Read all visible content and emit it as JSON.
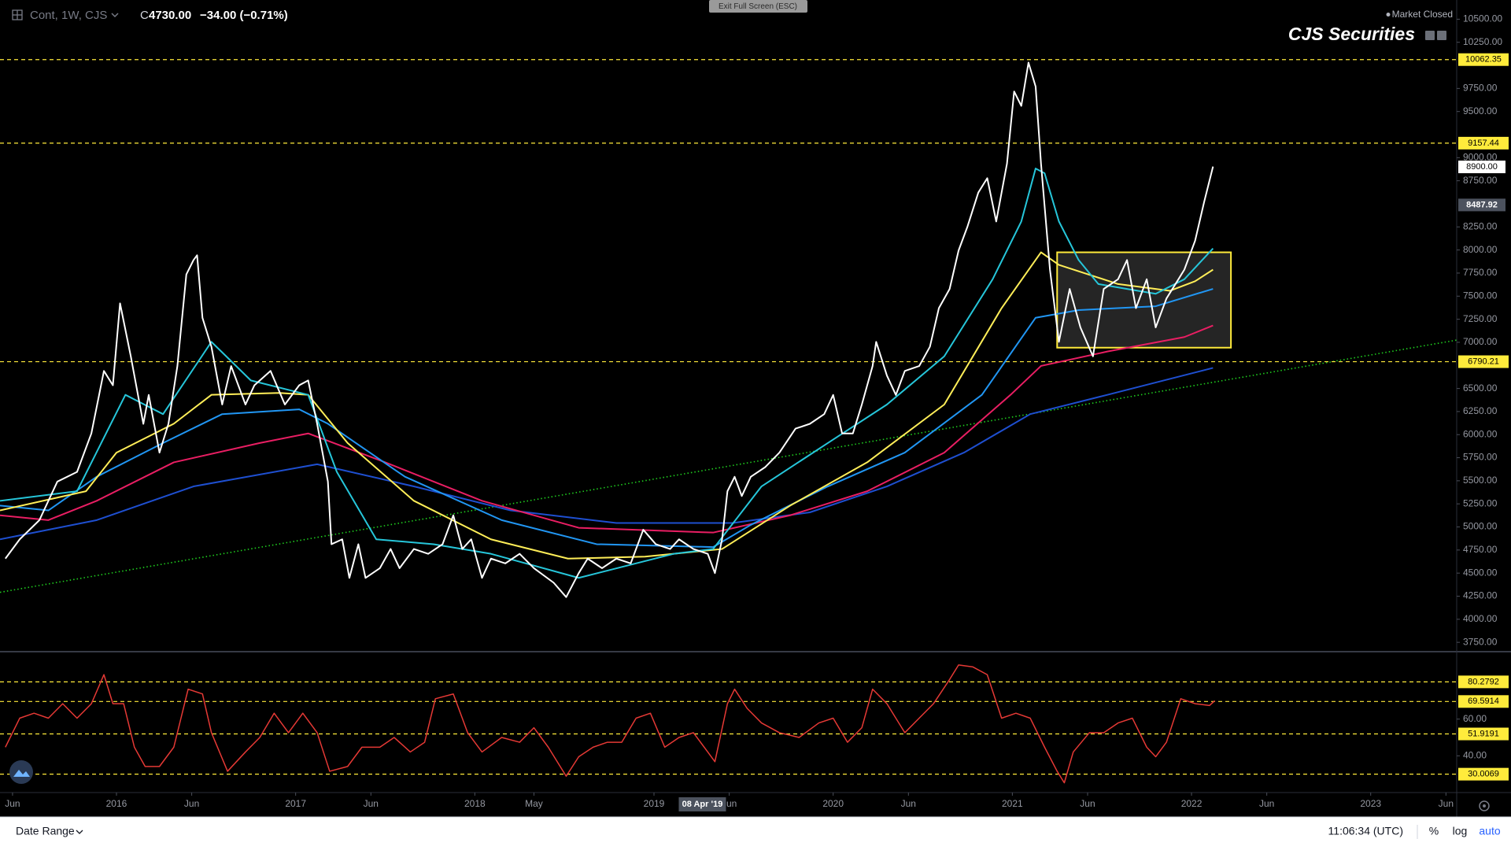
{
  "header": {
    "symbol": "Cont, 1W, CJS",
    "close_prefix": "C",
    "close": "4730.00",
    "change": "−34.00 (−0.71%)",
    "fullscreen": "Exit Full Screen (ESC)",
    "status": "Market Closed",
    "brand": "CJS Securities"
  },
  "toolbar": {
    "date_range": "Date Range",
    "time": "11:06:34 (UTC)",
    "percent": "%",
    "log": "log",
    "auto": "auto"
  },
  "chart_data": [
    {
      "type": "line",
      "log_scale": false,
      "grid": false,
      "xlim": [
        2015.35,
        2023.48
      ],
      "ylim": [
        3666,
        10708
      ],
      "yticks": [
        {
          "value": 10500,
          "label": "10500.00"
        },
        {
          "value": 10250,
          "label": "10250.00"
        },
        {
          "value": 9750,
          "label": "9750.00"
        },
        {
          "value": 9500,
          "label": "9500.00"
        },
        {
          "value": 9000,
          "label": "9000.00"
        },
        {
          "value": 8750,
          "label": "8750.00"
        },
        {
          "value": 8250,
          "label": "8250.00"
        },
        {
          "value": 8000,
          "label": "8000.00"
        },
        {
          "value": 7750,
          "label": "7750.00"
        },
        {
          "value": 7500,
          "label": "7500.00"
        },
        {
          "value": 7250,
          "label": "7250.00"
        },
        {
          "value": 7000,
          "label": "7000.00"
        },
        {
          "value": 6500,
          "label": "6500.00"
        },
        {
          "value": 6250,
          "label": "6250.00"
        },
        {
          "value": 6000,
          "label": "6000.00"
        },
        {
          "value": 5750,
          "label": "5750.00"
        },
        {
          "value": 5500,
          "label": "5500.00"
        },
        {
          "value": 5250,
          "label": "5250.00"
        },
        {
          "value": 5000,
          "label": "5000.00"
        },
        {
          "value": 4750,
          "label": "4750.00"
        },
        {
          "value": 4500,
          "label": "4500.00"
        },
        {
          "value": 4250,
          "label": "4250.00"
        },
        {
          "value": 4000,
          "label": "4000.00"
        },
        {
          "value": 3750,
          "label": "3750.00"
        }
      ],
      "trendline": {
        "color": "#1fcf1f",
        "x": [
          2015.35,
          2023.48
        ],
        "values": [
          4292,
          7024
        ]
      },
      "box": {
        "color": "#ffeb3b",
        "fill": "#2b2b2b",
        "x": [
          2021.25,
          2022.22
        ],
        "values": [
          6942,
          7975
        ]
      },
      "levels": {
        "color": "#ffeb3b",
        "values": [
          10062.35,
          9157.44,
          6790.21
        ]
      },
      "last_price": {
        "value": 8900,
        "label": "8900.00"
      },
      "crosshair_price": 8487.92,
      "series": [
        {
          "color": "#1e4fd0",
          "x": [
            2015.35,
            2015.89,
            2016.43,
            2017.12,
            2017.66,
            2018.2,
            2018.79,
            2019.44,
            2019.87,
            2020.3,
            2020.73,
            2021.1,
            2021.53,
            2022.12
          ],
          "values": [
            4866,
            5074,
            5439,
            5679,
            5439,
            5179,
            5043,
            5043,
            5158,
            5439,
            5805,
            6222,
            6431,
            6723
          ]
        },
        {
          "color": "#e91e63",
          "x": [
            2015.35,
            2015.62,
            2015.89,
            2016.32,
            2016.8,
            2017.07,
            2017.5,
            2018.04,
            2018.58,
            2019.33,
            2019.76,
            2020.19,
            2020.62,
            2020.99,
            2021.16,
            2021.53,
            2021.96,
            2022.12
          ],
          "values": [
            5126,
            5074,
            5283,
            5700,
            5909,
            6013,
            5700,
            5283,
            4991,
            4939,
            5126,
            5387,
            5805,
            6431,
            6744,
            6900,
            7057,
            7182
          ]
        },
        {
          "color": "#2196f3",
          "x": [
            2015.35,
            2015.62,
            2015.89,
            2016.26,
            2016.59,
            2017.02,
            2017.18,
            2017.61,
            2018.15,
            2018.68,
            2019.33,
            2019.54,
            2019.97,
            2020.4,
            2020.83,
            2021.13,
            2021.37,
            2021.8,
            2022.12
          ],
          "values": [
            5231,
            5179,
            5544,
            5909,
            6222,
            6274,
            6118,
            5544,
            5074,
            4813,
            4782,
            5022,
            5439,
            5805,
            6431,
            7266,
            7349,
            7391,
            7579
          ]
        },
        {
          "color": "#ffee58",
          "x": [
            2015.35,
            2015.83,
            2016.0,
            2016.32,
            2016.53,
            2016.91,
            2017.07,
            2017.29,
            2017.66,
            2018.09,
            2018.52,
            2018.95,
            2019.38,
            2019.76,
            2020.19,
            2020.62,
            2020.94,
            2021.16,
            2021.26,
            2021.59,
            2021.88,
            2022.02,
            2022.12
          ],
          "values": [
            5179,
            5387,
            5805,
            6118,
            6431,
            6452,
            6431,
            5909,
            5283,
            4866,
            4657,
            4678,
            4761,
            5231,
            5700,
            6326,
            7370,
            7975,
            7839,
            7631,
            7558,
            7662,
            7787
          ]
        },
        {
          "color": "#26c6da",
          "x": [
            2015.35,
            2015.78,
            2016.05,
            2016.26,
            2016.53,
            2016.75,
            2017.07,
            2017.23,
            2017.45,
            2017.77,
            2018.09,
            2018.58,
            2019.11,
            2019.33,
            2019.6,
            2019.97,
            2020.3,
            2020.62,
            2020.89,
            2021.05,
            2021.13,
            2021.18,
            2021.26,
            2021.37,
            2021.48,
            2021.64,
            2021.8,
            2021.96,
            2022.12
          ],
          "values": [
            5283,
            5387,
            6431,
            6222,
            7005,
            6587,
            6431,
            5596,
            4866,
            4813,
            4709,
            4448,
            4709,
            4761,
            5439,
            5909,
            6326,
            6848,
            7683,
            8309,
            8883,
            8831,
            8309,
            7891,
            7631,
            7578,
            7526,
            7683,
            8017
          ]
        },
        {
          "color": "#ffffff",
          "x": [
            2015.38,
            2015.46,
            2015.57,
            2015.67,
            2015.78,
            2015.86,
            2015.93,
            2015.98,
            2016.02,
            2016.08,
            2016.15,
            2016.18,
            2016.24,
            2016.29,
            2016.34,
            2016.39,
            2016.43,
            2016.45,
            2016.48,
            2016.53,
            2016.59,
            2016.64,
            2016.72,
            2016.77,
            2016.86,
            2016.94,
            2017.02,
            2017.07,
            2017.12,
            2017.18,
            2017.2,
            2017.26,
            2017.3,
            2017.35,
            2017.39,
            2017.47,
            2017.53,
            2017.58,
            2017.66,
            2017.74,
            2017.82,
            2017.88,
            2017.93,
            2017.98,
            2018.04,
            2018.09,
            2018.17,
            2018.25,
            2018.33,
            2018.44,
            2018.51,
            2018.58,
            2018.63,
            2018.71,
            2018.79,
            2018.87,
            2018.94,
            2019.01,
            2019.09,
            2019.14,
            2019.22,
            2019.3,
            2019.34,
            2019.38,
            2019.41,
            2019.45,
            2019.49,
            2019.54,
            2019.62,
            2019.7,
            2019.79,
            2019.87,
            2019.95,
            2020.0,
            2020.05,
            2020.11,
            2020.16,
            2020.22,
            2020.24,
            2020.3,
            2020.35,
            2020.4,
            2020.48,
            2020.54,
            2020.59,
            2020.65,
            2020.7,
            2020.75,
            2020.81,
            2020.86,
            2020.91,
            2020.97,
            2021.01,
            2021.05,
            2021.09,
            2021.13,
            2021.16,
            2021.21,
            2021.26,
            2021.32,
            2021.38,
            2021.45,
            2021.51,
            2021.59,
            2021.64,
            2021.69,
            2021.75,
            2021.8,
            2021.86,
            2021.91,
            2021.96,
            2022.02,
            2022.07,
            2022.12
          ],
          "values": [
            4657,
            4866,
            5074,
            5491,
            5596,
            6013,
            6690,
            6535,
            7422,
            6848,
            6117,
            6430,
            5805,
            6117,
            6743,
            7735,
            7891,
            7943,
            7265,
            6952,
            6326,
            6743,
            6326,
            6535,
            6690,
            6326,
            6535,
            6587,
            6117,
            5491,
            4813,
            4866,
            4448,
            4813,
            4448,
            4553,
            4761,
            4553,
            4761,
            4709,
            4813,
            5126,
            4761,
            4866,
            4448,
            4657,
            4605,
            4709,
            4553,
            4396,
            4240,
            4500,
            4657,
            4553,
            4657,
            4605,
            4970,
            4813,
            4761,
            4866,
            4761,
            4709,
            4500,
            4866,
            5387,
            5543,
            5335,
            5543,
            5647,
            5805,
            6065,
            6117,
            6222,
            6430,
            6013,
            6013,
            6326,
            6743,
            7005,
            6640,
            6430,
            6690,
            6743,
            6952,
            7370,
            7578,
            7995,
            8256,
            8622,
            8778,
            8309,
            8935,
            9717,
            9561,
            10030,
            9770,
            8935,
            7787,
            7005,
            7578,
            7161,
            6848,
            7578,
            7683,
            7891,
            7370,
            7683,
            7161,
            7474,
            7630,
            7787,
            8100,
            8517,
            8904
          ]
        }
      ]
    },
    {
      "type": "line",
      "grid": false,
      "xlim": [
        2015.35,
        2023.48
      ],
      "ylim": [
        20,
        96.3
      ],
      "yticks": [
        {
          "value": 60,
          "label": "60.00"
        },
        {
          "value": 40,
          "label": "40.00"
        }
      ],
      "xticks": [
        {
          "value": 2015.42,
          "label": "Jun"
        },
        2016,
        {
          "value": 2016.42,
          "label": "Jun"
        },
        2017,
        {
          "value": 2017.42,
          "label": "Jun"
        },
        2018,
        {
          "value": 2018.33,
          "label": "May"
        },
        2019,
        {
          "value": 2019.42,
          "label": "Jun"
        },
        2020,
        {
          "value": 2020.42,
          "label": "Jun"
        },
        2021,
        {
          "value": 2021.42,
          "label": "Jun"
        },
        2022,
        {
          "value": 2022.42,
          "label": "Jun"
        },
        2023,
        {
          "value": 2023.42,
          "label": "Jun"
        }
      ],
      "levels": {
        "color": "#ffeb3b",
        "values": [
          80.2792,
          69.5914,
          51.9191,
          30.0069
        ]
      },
      "crosshair_x": {
        "value": 2019.27,
        "label": "08 Apr '19"
      },
      "series": [
        {
          "color": "#e53935",
          "x": [
            2015.38,
            2015.46,
            2015.54,
            2015.62,
            2015.7,
            2015.78,
            2015.86,
            2015.93,
            2015.98,
            2016.04,
            2016.1,
            2016.16,
            2016.24,
            2016.32,
            2016.4,
            2016.48,
            2016.53,
            2016.62,
            2016.72,
            2016.8,
            2016.88,
            2016.96,
            2017.04,
            2017.12,
            2017.19,
            2017.29,
            2017.37,
            2017.47,
            2017.55,
            2017.64,
            2017.72,
            2017.78,
            2017.88,
            2017.96,
            2018.04,
            2018.15,
            2018.25,
            2018.33,
            2018.41,
            2018.51,
            2018.58,
            2018.66,
            2018.74,
            2018.82,
            2018.9,
            2018.98,
            2019.06,
            2019.14,
            2019.22,
            2019.3,
            2019.34,
            2019.41,
            2019.45,
            2019.52,
            2019.6,
            2019.7,
            2019.81,
            2019.92,
            2020.0,
            2020.08,
            2020.16,
            2020.22,
            2020.3,
            2020.4,
            2020.48,
            2020.56,
            2020.65,
            2020.7,
            2020.78,
            2020.86,
            2020.94,
            2021.02,
            2021.1,
            2021.18,
            2021.25,
            2021.29,
            2021.34,
            2021.43,
            2021.51,
            2021.59,
            2021.67,
            2021.75,
            2021.8,
            2021.86,
            2021.94,
            2022.02,
            2022.1,
            2022.13
          ],
          "values": [
            44.7,
            60.5,
            63.2,
            60.5,
            68.4,
            60.5,
            68.4,
            84.2,
            68.4,
            68.4,
            44.7,
            34.2,
            34.2,
            44.7,
            76.3,
            73.7,
            52.6,
            31.6,
            42.1,
            50.0,
            63.2,
            52.6,
            63.2,
            52.6,
            31.6,
            34.2,
            44.7,
            44.7,
            50.0,
            42.1,
            47.4,
            71.1,
            73.7,
            52.6,
            42.1,
            50.0,
            47.4,
            55.3,
            44.7,
            28.9,
            39.5,
            44.7,
            47.4,
            47.4,
            60.5,
            63.2,
            44.7,
            50.0,
            52.6,
            42.1,
            36.8,
            68.4,
            76.3,
            65.8,
            57.9,
            52.6,
            50.0,
            57.9,
            60.5,
            47.4,
            55.3,
            76.3,
            68.4,
            52.6,
            60.5,
            68.4,
            81.6,
            89.5,
            88.4,
            84.2,
            60.5,
            63.2,
            60.5,
            44.7,
            31.6,
            25.3,
            42.1,
            52.6,
            52.6,
            57.9,
            60.5,
            44.7,
            39.5,
            47.4,
            71.1,
            68.4,
            67.4,
            70.0
          ]
        }
      ]
    }
  ]
}
